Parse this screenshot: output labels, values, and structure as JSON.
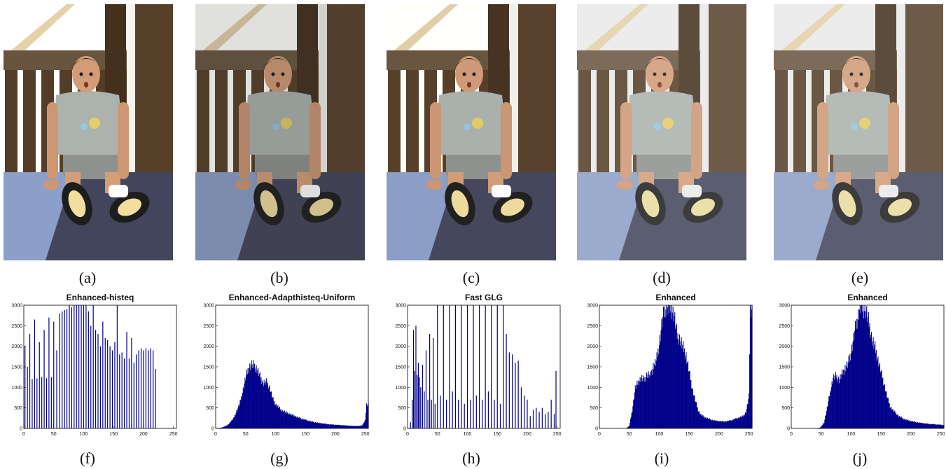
{
  "photos": [
    {
      "caption": "(a)",
      "tone": "histeq"
    },
    {
      "caption": "(b)",
      "tone": "adapthisteq"
    },
    {
      "caption": "(c)",
      "tone": "fastglg"
    },
    {
      "caption": "(d)",
      "tone": "light"
    },
    {
      "caption": "(e)",
      "tone": "light"
    }
  ],
  "colors": {
    "bar": "#00008b",
    "axis": "#000000",
    "wood": "#5a4632",
    "shirt": "#a6aca8",
    "floor": "#8a9bbf",
    "sky": "#f4f4f0"
  },
  "chart_data": [
    {
      "type": "bar",
      "caption": "(f)",
      "title": "Enhanced-histeq",
      "style": "sparse",
      "xlim": [
        0,
        255
      ],
      "ylim": [
        0,
        3000
      ],
      "xticks": [
        0,
        50,
        100,
        150,
        200,
        250
      ],
      "yticks": [
        0,
        500,
        1000,
        1500,
        2000,
        2500,
        3000
      ],
      "x": [
        2,
        6,
        10,
        14,
        18,
        22,
        26,
        30,
        34,
        38,
        42,
        46,
        50,
        55,
        60,
        64,
        68,
        72,
        76,
        80,
        84,
        88,
        92,
        96,
        100,
        104,
        108,
        112,
        116,
        120,
        124,
        128,
        132,
        136,
        140,
        144,
        148,
        152,
        156,
        160,
        164,
        168,
        172,
        176,
        180,
        184,
        188,
        192,
        196,
        200,
        204,
        208,
        212,
        216,
        220
      ],
      "values": [
        2000,
        1500,
        2300,
        1200,
        2650,
        1220,
        2100,
        1250,
        2400,
        1220,
        2700,
        1250,
        2600,
        1900,
        2800,
        2850,
        2880,
        2900,
        3000,
        2950,
        3000,
        3000,
        3000,
        3000,
        3000,
        3000,
        2850,
        2500,
        3000,
        2400,
        2300,
        2000,
        2600,
        2200,
        2150,
        2000,
        1900,
        2100,
        3000,
        1800,
        1850,
        1700,
        2350,
        1700,
        2200,
        1600,
        1800,
        1900,
        1950,
        1900,
        1950,
        1900,
        1950,
        1900,
        1450
      ]
    },
    {
      "type": "bar",
      "caption": "(g)",
      "title": "Enhanced-Adapthisteq-Uniform",
      "style": "dense",
      "xlim": [
        0,
        255
      ],
      "ylim": [
        0,
        3000
      ],
      "xticks": [
        0,
        50,
        100,
        150,
        200,
        250
      ],
      "yticks": [
        0,
        500,
        1000,
        1500,
        2000,
        2500,
        3000
      ],
      "x": [
        0,
        10,
        20,
        30,
        40,
        45,
        50,
        55,
        60,
        65,
        70,
        75,
        80,
        85,
        90,
        95,
        100,
        110,
        120,
        130,
        140,
        150,
        160,
        170,
        180,
        190,
        200,
        210,
        220,
        230,
        240,
        245,
        250,
        252
      ],
      "values": [
        0,
        20,
        80,
        250,
        600,
        900,
        1250,
        1500,
        1580,
        1550,
        1450,
        1250,
        1120,
        1150,
        1020,
        750,
        600,
        450,
        380,
        320,
        260,
        210,
        170,
        140,
        120,
        100,
        90,
        80,
        70,
        60,
        60,
        80,
        200,
        600
      ]
    },
    {
      "type": "bar",
      "caption": "(h)",
      "title": "Fast GLG",
      "style": "sparse",
      "xlim": [
        0,
        255
      ],
      "ylim": [
        0,
        3000
      ],
      "xticks": [
        0,
        50,
        100,
        150,
        200,
        250
      ],
      "yticks": [
        0,
        500,
        1000,
        1500,
        2000,
        2500,
        3000
      ],
      "x": [
        5,
        8,
        10,
        12,
        14,
        16,
        18,
        20,
        22,
        25,
        28,
        31,
        34,
        37,
        40,
        43,
        46,
        50,
        55,
        60,
        65,
        70,
        75,
        80,
        85,
        90,
        95,
        100,
        105,
        110,
        115,
        120,
        125,
        130,
        135,
        140,
        145,
        150,
        155,
        160,
        165,
        170,
        175,
        180,
        185,
        190,
        195,
        200,
        205,
        210,
        215,
        220,
        225,
        230,
        235,
        240,
        245,
        248
      ],
      "values": [
        150,
        700,
        2400,
        1400,
        2500,
        1300,
        1600,
        1250,
        1000,
        1550,
        900,
        1900,
        700,
        2300,
        700,
        2200,
        600,
        3000,
        800,
        3000,
        700,
        3000,
        900,
        3000,
        700,
        3000,
        600,
        3000,
        700,
        3000,
        800,
        3000,
        700,
        3000,
        900,
        3000,
        700,
        3000,
        600,
        3000,
        2300,
        1850,
        1800,
        1600,
        1650,
        1000,
        800,
        700,
        300,
        450,
        500,
        400,
        500,
        350,
        400,
        700,
        350,
        1400
      ]
    },
    {
      "type": "bar",
      "caption": "(i)",
      "title": "Enhanced",
      "style": "dense",
      "xlim": [
        0,
        255
      ],
      "ylim": [
        0,
        3000
      ],
      "xticks": [
        0,
        50,
        100,
        150,
        200,
        250
      ],
      "yticks": [
        0,
        500,
        1000,
        1500,
        2000,
        2500,
        3000
      ],
      "x": [
        0,
        30,
        45,
        50,
        55,
        60,
        65,
        70,
        75,
        80,
        85,
        90,
        95,
        100,
        105,
        110,
        115,
        120,
        125,
        130,
        135,
        140,
        145,
        150,
        155,
        160,
        165,
        170,
        180,
        190,
        200,
        210,
        220,
        230,
        240,
        245,
        250,
        252
      ],
      "values": [
        0,
        0,
        5,
        60,
        450,
        1000,
        1150,
        1250,
        1200,
        1350,
        1300,
        1550,
        1650,
        2100,
        2650,
        3000,
        3000,
        3000,
        2800,
        2300,
        2200,
        2000,
        1800,
        1400,
        1000,
        700,
        450,
        330,
        250,
        200,
        180,
        170,
        200,
        250,
        300,
        400,
        800,
        3000
      ]
    },
    {
      "type": "bar",
      "caption": "(j)",
      "title": "Enhanced",
      "style": "dense",
      "xlim": [
        0,
        255
      ],
      "ylim": [
        0,
        3000
      ],
      "xticks": [
        0,
        50,
        100,
        150,
        200,
        250
      ],
      "yticks": [
        0,
        500,
        1000,
        1500,
        2000,
        2500,
        3000
      ],
      "x": [
        0,
        30,
        45,
        50,
        55,
        60,
        65,
        70,
        75,
        80,
        85,
        90,
        95,
        100,
        105,
        110,
        115,
        120,
        125,
        130,
        135,
        140,
        145,
        150,
        155,
        160,
        165,
        170,
        180,
        190,
        200,
        210,
        220,
        230,
        240,
        250,
        255
      ],
      "values": [
        0,
        0,
        10,
        30,
        150,
        500,
        900,
        1250,
        1300,
        1200,
        1350,
        1500,
        1600,
        1900,
        2300,
        2700,
        3000,
        3000,
        2900,
        2600,
        2200,
        2000,
        1700,
        1400,
        1100,
        800,
        550,
        450,
        300,
        220,
        180,
        150,
        130,
        110,
        100,
        90,
        80
      ]
    }
  ]
}
